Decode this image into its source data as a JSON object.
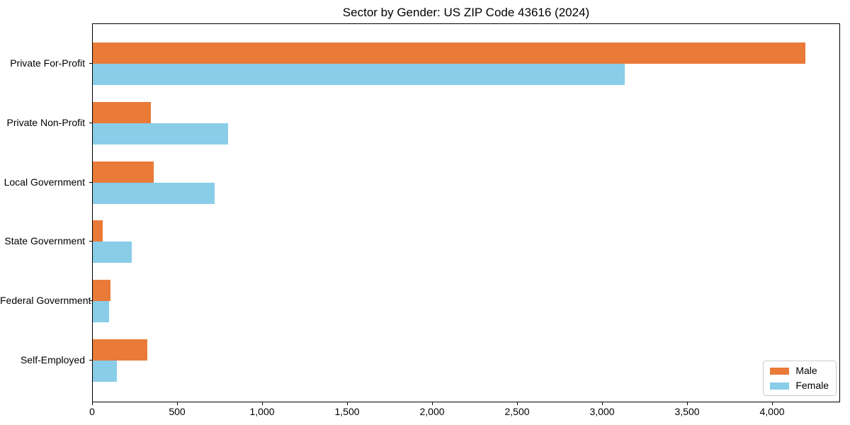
{
  "chart_data": {
    "type": "bar",
    "orientation": "horizontal",
    "title": "Sector by Gender: US ZIP Code 43616 (2024)",
    "categories": [
      "Private For-Profit",
      "Private Non-Profit",
      "Local Government",
      "State Government",
      "Federal Government",
      "Self-Employed"
    ],
    "series": [
      {
        "name": "Male",
        "color": "#e97a38",
        "values": [
          4190,
          340,
          360,
          60,
          105,
          320
        ]
      },
      {
        "name": "Female",
        "color": "#89cde9",
        "values": [
          3130,
          795,
          715,
          230,
          95,
          140
        ]
      }
    ],
    "xlabel": "",
    "ylabel": "",
    "xlim": [
      0,
      4400
    ],
    "x_ticks": [
      0,
      500,
      1000,
      1500,
      2000,
      2500,
      3000,
      3500,
      4000
    ],
    "x_tick_labels": [
      "0",
      "500",
      "1,000",
      "1,500",
      "2,000",
      "2,500",
      "3,000",
      "3,500",
      "4,000"
    ],
    "grid": false,
    "legend": {
      "position": "lower right"
    },
    "colors": {
      "background": "#ffffff",
      "axis": "#000000",
      "text": "#000000",
      "legend_border": "#cccccc"
    }
  }
}
